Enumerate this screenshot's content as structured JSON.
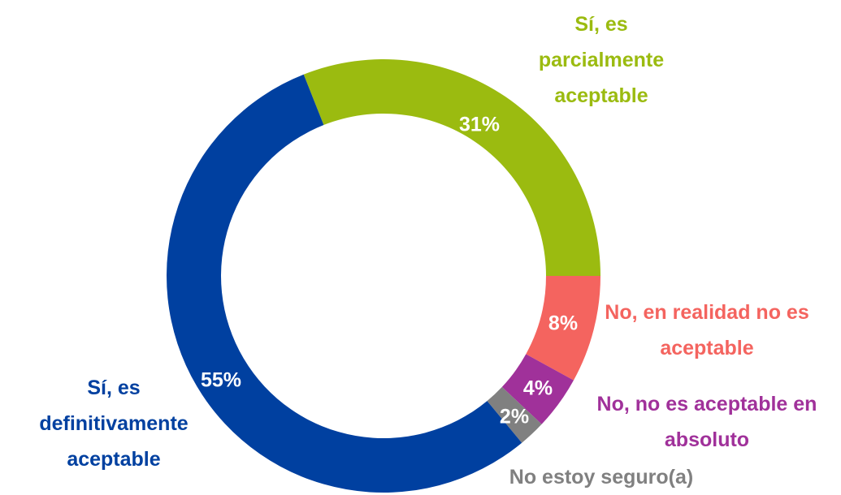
{
  "chart_data": {
    "type": "donut",
    "categories": [
      "Sí, es parcialmente aceptable",
      "No, en realidad no es aceptable",
      "No, no es aceptable en absoluto",
      "No estoy seguro(a)",
      "Sí, es definitivamente aceptable"
    ],
    "values": [
      31,
      8,
      4,
      2,
      55
    ],
    "value_labels": [
      "31%",
      "8%",
      "4%",
      "2%",
      "55%"
    ],
    "colors": [
      "#9bbb10",
      "#f4645f",
      "#a0319a",
      "#808080",
      "#0040a0"
    ]
  }
}
